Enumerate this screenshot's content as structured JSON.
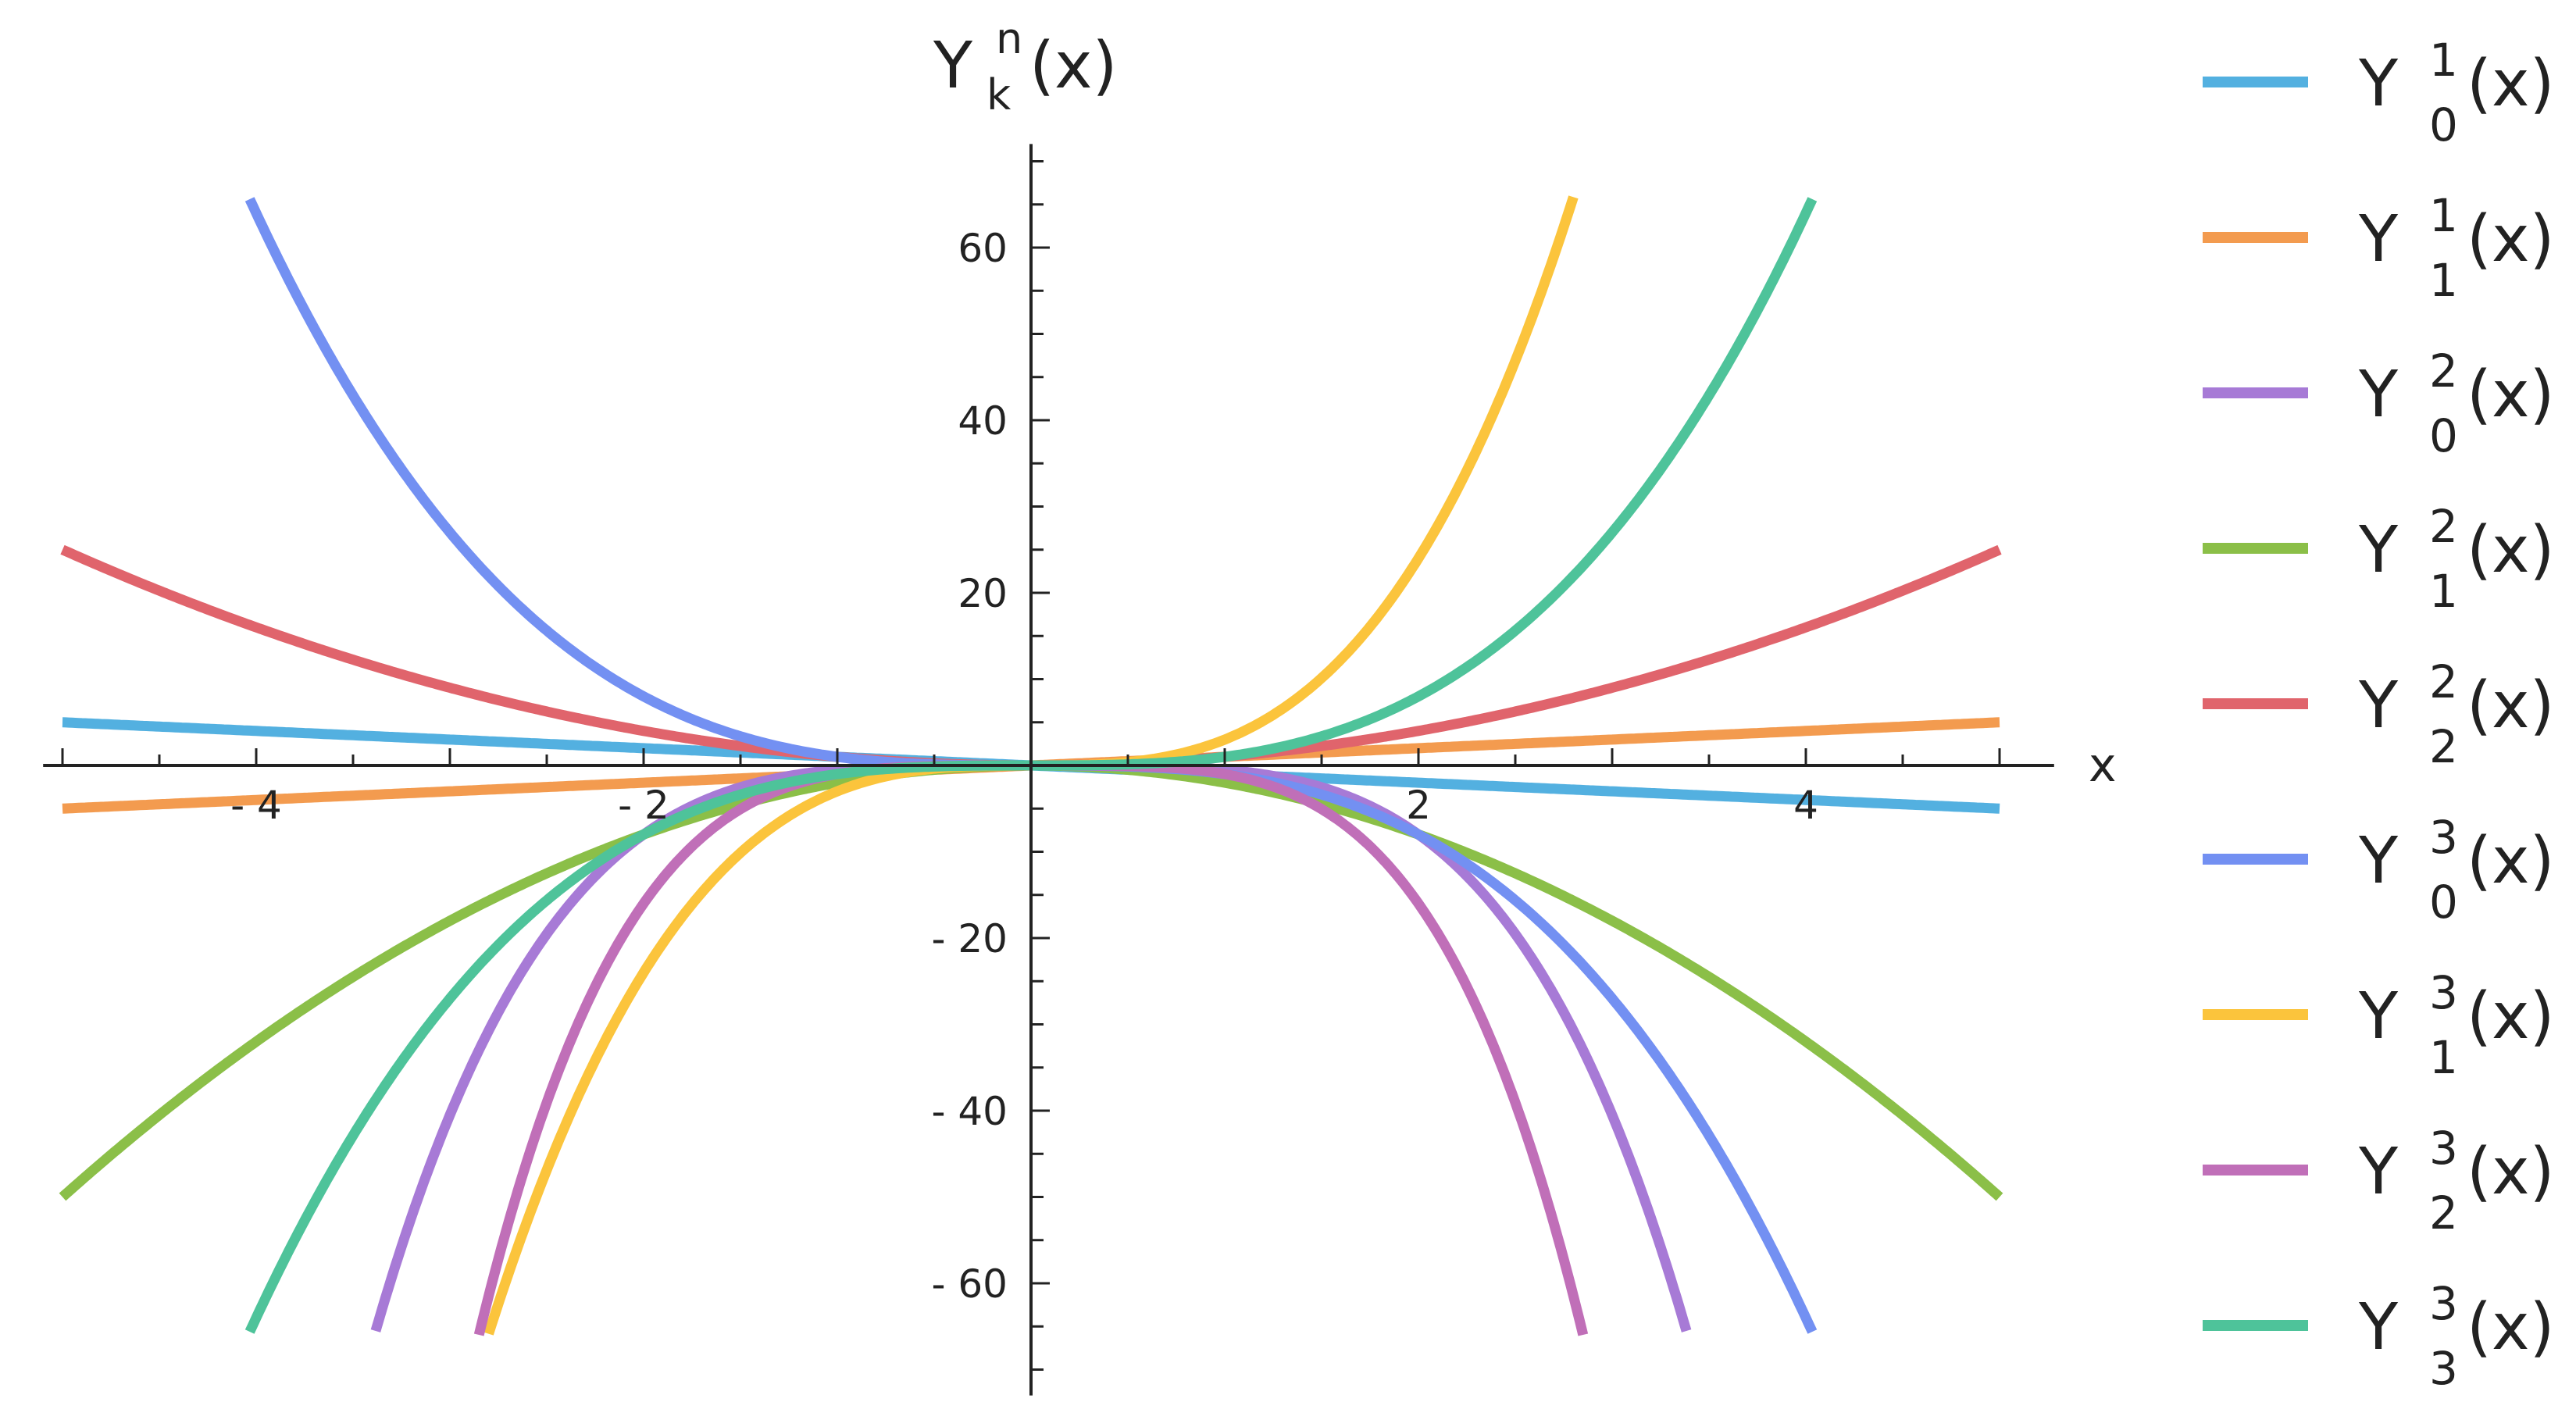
{
  "chart_data": {
    "type": "line",
    "title": "",
    "xlabel": "x",
    "ylabel": {
      "base": "Y",
      "sup": "n",
      "sub": "k",
      "tail": "(x)"
    },
    "xlim": [
      -5.1,
      5.1
    ],
    "ylim": [
      -73,
      72
    ],
    "x_ticks": [
      {
        "value": -4,
        "label": "- 4"
      },
      {
        "value": -2,
        "label": "- 2"
      },
      {
        "value": 2,
        "label": "2"
      },
      {
        "value": 4,
        "label": "4"
      }
    ],
    "y_ticks": [
      {
        "value": 60,
        "label": "60"
      },
      {
        "value": 40,
        "label": "40"
      },
      {
        "value": 20,
        "label": "20"
      },
      {
        "value": -20,
        "label": "- 20"
      },
      {
        "value": -40,
        "label": "- 40"
      },
      {
        "value": -60,
        "label": "- 60"
      }
    ],
    "x_minor_step": 0.5,
    "y_minor_step": 5,
    "grid": false,
    "legend_position": "right",
    "clip_y": [
      -66,
      66
    ],
    "series": [
      {
        "name": "Y_0^1(x)",
        "label": {
          "base": "Y",
          "sup": "1",
          "sub": "0",
          "tail": "(x)"
        },
        "color": "#53b0e0",
        "coef": -1,
        "power": 1
      },
      {
        "name": "Y_1^1(x)",
        "label": {
          "base": "Y",
          "sup": "1",
          "sub": "1",
          "tail": "(x)"
        },
        "color": "#f39b4f",
        "coef": 1,
        "power": 1
      },
      {
        "name": "Y_0^2(x)",
        "label": {
          "base": "Y",
          "sup": "2",
          "sub": "0",
          "tail": "(x)"
        },
        "color": "#a77ad6",
        "coef": -0.5,
        "power": 4
      },
      {
        "name": "Y_1^2(x)",
        "label": {
          "base": "Y",
          "sup": "2",
          "sub": "1",
          "tail": "(x)"
        },
        "color": "#8bbf48",
        "coef": -2,
        "power": 2
      },
      {
        "name": "Y_2^2(x)",
        "label": {
          "base": "Y",
          "sup": "2",
          "sub": "2",
          "tail": "(x)"
        },
        "color": "#e0646c",
        "coef": 1,
        "power": 2
      },
      {
        "name": "Y_0^3(x)",
        "label": {
          "base": "Y",
          "sup": "3",
          "sub": "0",
          "tail": "(x)"
        },
        "color": "#7390f2",
        "coef": -1,
        "power": 3
      },
      {
        "name": "Y_1^3(x)",
        "label": {
          "base": "Y",
          "sup": "3",
          "sub": "1",
          "tail": "(x)"
        },
        "color": "#fbc43c",
        "coef": 3,
        "power": 3
      },
      {
        "name": "Y_2^3(x)",
        "label": {
          "base": "Y",
          "sup": "3",
          "sub": "2",
          "tail": "(x)"
        },
        "color": "#c06fb8",
        "coef": -1,
        "power": 4
      },
      {
        "name": "Y_3^3(x)",
        "label": {
          "base": "Y",
          "sup": "3",
          "sub": "3",
          "tail": "(x)"
        },
        "color": "#4ec39a",
        "coef": 1,
        "power": 3
      }
    ]
  }
}
